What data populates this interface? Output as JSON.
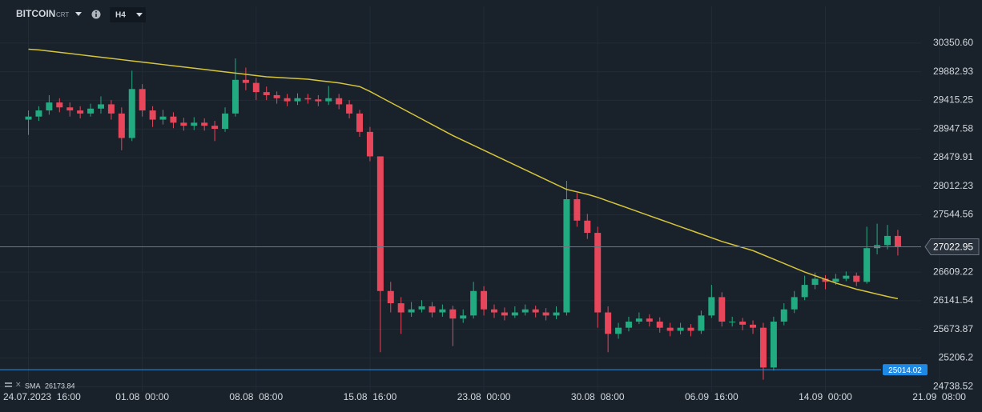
{
  "chart_data": {
    "type": "candlestick",
    "symbol": "BITCOIN",
    "symbol_tag": "CRT",
    "timeframe": "H4",
    "x": [
      0,
      4,
      8,
      12,
      16,
      20,
      24,
      28,
      32,
      36,
      40,
      44,
      48,
      52,
      56,
      60,
      64,
      68,
      72,
      76,
      80,
      84,
      88,
      92,
      96,
      100,
      104,
      108,
      112,
      116,
      120,
      124,
      128,
      132,
      136,
      140,
      144,
      148,
      152,
      156,
      160,
      164,
      168,
      172,
      176,
      180,
      184,
      188,
      192,
      196,
      200,
      204,
      208,
      212,
      216,
      220,
      224,
      228,
      232,
      236,
      240,
      244,
      248,
      252,
      256,
      260,
      264,
      268,
      272,
      276,
      280,
      284,
      288,
      292,
      296,
      300,
      304,
      308,
      312,
      316,
      320,
      324,
      328,
      332,
      336
    ],
    "open": [
      29100,
      29150,
      29250,
      29380,
      29300,
      29250,
      29200,
      29280,
      29350,
      29200,
      28800,
      29600,
      29250,
      29100,
      29150,
      29050,
      29000,
      29050,
      29000,
      28950,
      29200,
      29750,
      29700,
      29550,
      29500,
      29450,
      29400,
      29450,
      29430,
      29400,
      29450,
      29350,
      29200,
      28900,
      28500,
      26300,
      26100,
      25950,
      26000,
      26050,
      25950,
      26000,
      25850,
      25900,
      26300,
      26000,
      25950,
      25900,
      25950,
      26000,
      25950,
      25900,
      25950,
      27800,
      27450,
      27250,
      25950,
      25600,
      25700,
      25800,
      25850,
      25800,
      25700,
      25650,
      25700,
      25650,
      25900,
      26200,
      25800,
      25800,
      25750,
      25700,
      25050,
      25800,
      26000,
      26200,
      26400,
      26500,
      26450,
      26500,
      26550,
      26450,
      27000,
      27050,
      27200
    ],
    "high": [
      29250,
      29320,
      29500,
      29450,
      29380,
      29320,
      29360,
      29480,
      29420,
      29300,
      29900,
      29680,
      29320,
      29260,
      29220,
      29130,
      29140,
      29120,
      29080,
      29300,
      30100,
      29950,
      29780,
      29640,
      29560,
      29520,
      29530,
      29520,
      29500,
      29650,
      29520,
      29420,
      29260,
      28980,
      28500,
      26450,
      26200,
      26120,
      26150,
      26120,
      26080,
      26060,
      26000,
      26450,
      26380,
      26080,
      26030,
      26050,
      26080,
      26060,
      26020,
      26050,
      28100,
      27900,
      27560,
      27350,
      26050,
      25780,
      25880,
      25950,
      25920,
      25870,
      25780,
      25780,
      25760,
      25980,
      26400,
      26280,
      25880,
      25860,
      25820,
      25780,
      25880,
      26100,
      26300,
      26550,
      26600,
      26560,
      26580,
      26620,
      26600,
      27350,
      27400,
      27380,
      27300
    ],
    "low": [
      28850,
      29080,
      29180,
      29220,
      29150,
      29120,
      29150,
      29200,
      29100,
      28600,
      28750,
      29150,
      28980,
      29020,
      28960,
      28920,
      28930,
      28920,
      28750,
      28900,
      29150,
      29580,
      29420,
      29420,
      29360,
      29320,
      29340,
      29360,
      29320,
      29340,
      29270,
      29120,
      28820,
      28420,
      25300,
      25950,
      25600,
      25880,
      25950,
      25870,
      25880,
      25400,
      25780,
      25850,
      25900,
      25860,
      25820,
      25860,
      25900,
      25870,
      25820,
      25840,
      25900,
      27350,
      27150,
      25700,
      25300,
      25520,
      25640,
      25760,
      25720,
      25620,
      25560,
      25590,
      25560,
      25600,
      25860,
      25720,
      25720,
      25660,
      25600,
      24850,
      25000,
      25740,
      25940,
      26150,
      26330,
      26330,
      26400,
      26460,
      26380,
      26420,
      26900,
      26980,
      26880
    ],
    "close": [
      29150,
      29250,
      29380,
      29300,
      29250,
      29200,
      29280,
      29350,
      29200,
      28800,
      29600,
      29250,
      29100,
      29150,
      29050,
      29000,
      29050,
      29000,
      28950,
      29200,
      29750,
      29700,
      29550,
      29500,
      29450,
      29400,
      29450,
      29430,
      29400,
      29450,
      29350,
      29200,
      28900,
      28500,
      26300,
      26100,
      25950,
      26000,
      26050,
      25950,
      26000,
      25850,
      25900,
      26300,
      26000,
      25950,
      25900,
      25950,
      26000,
      25950,
      25900,
      25950,
      27800,
      27450,
      27250,
      25950,
      25600,
      25700,
      25800,
      25850,
      25800,
      25700,
      25650,
      25700,
      25650,
      25900,
      26200,
      25800,
      25800,
      25750,
      25700,
      25050,
      25800,
      26000,
      26200,
      26400,
      26500,
      26450,
      26500,
      26550,
      26450,
      27000,
      27050,
      27200,
      27022.95
    ],
    "up_color": "#22ab80",
    "down_color": "#e8475b",
    "sma": {
      "name": "SMA",
      "color": "#d6c53c",
      "values": [
        30250,
        30240,
        30220,
        30200,
        30180,
        30160,
        30140,
        30120,
        30100,
        30080,
        30060,
        30040,
        30020,
        30000,
        29980,
        29960,
        29940,
        29920,
        29900,
        29880,
        29860,
        29840,
        29820,
        29800,
        29790,
        29780,
        29770,
        29760,
        29740,
        29720,
        29700,
        29670,
        29640,
        29560,
        29470,
        29380,
        29290,
        29200,
        29110,
        29020,
        28930,
        28840,
        28760,
        28680,
        28600,
        28520,
        28440,
        28360,
        28280,
        28200,
        28120,
        28040,
        27960,
        27920,
        27880,
        27830,
        27770,
        27710,
        27650,
        27590,
        27530,
        27470,
        27410,
        27350,
        27290,
        27230,
        27170,
        27110,
        27060,
        27010,
        26960,
        26890,
        26820,
        26750,
        26680,
        26610,
        26550,
        26490,
        26430,
        26380,
        26330,
        26290,
        26250,
        26210,
        26173.84
      ]
    },
    "current_price": 27022.95,
    "marker_price": 25014.02,
    "xlim": [
      -11,
      345
    ],
    "ylim": [
      24650,
      30950
    ],
    "xticks": [
      {
        "value": 0,
        "label": "24.07.2023  16:00"
      },
      {
        "value": 44,
        "label": "01.08  00:00"
      },
      {
        "value": 88,
        "label": "08.08  08:00"
      },
      {
        "value": 132,
        "label": "15.08  16:00"
      },
      {
        "value": 176,
        "label": "23.08  00:00"
      },
      {
        "value": 220,
        "label": "30.08  08:00"
      },
      {
        "value": 264,
        "label": "06.09  16:00"
      },
      {
        "value": 308,
        "label": "14.09  00:00"
      },
      {
        "value": 352,
        "label": "21.09  08:00"
      }
    ],
    "yticks": [
      {
        "value": 30350.6,
        "label": "30350.60"
      },
      29882.93,
      29415.25,
      28947.58,
      28479.91,
      28012.23,
      27544.56,
      26609.22,
      26141.54,
      25673.87,
      25206.2,
      24738.52
    ],
    "grid": true
  }
}
